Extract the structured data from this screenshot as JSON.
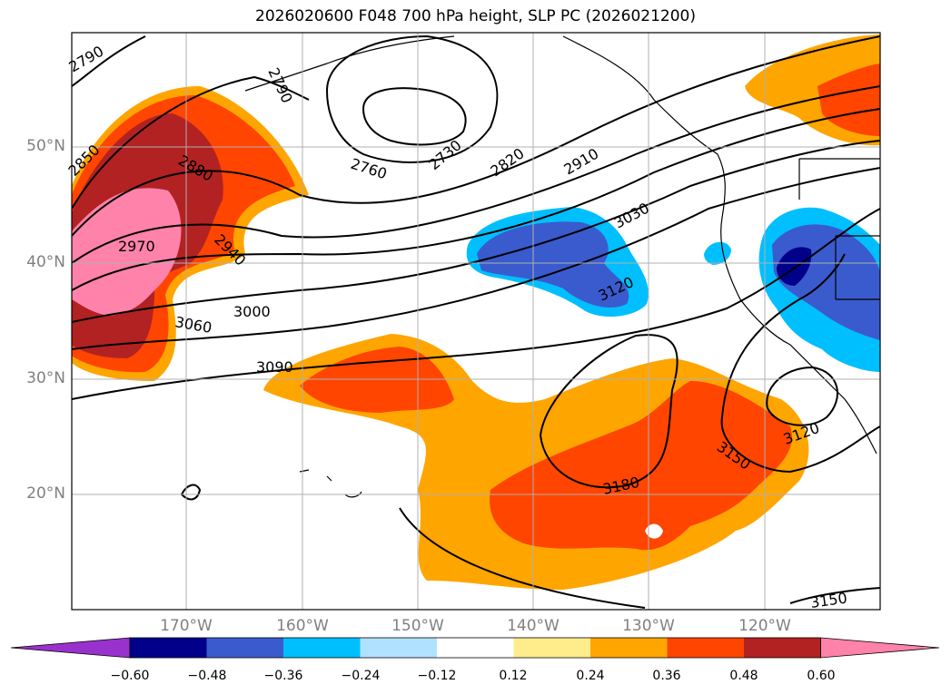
{
  "title": "2026020600 F048 700 hPa height, SLP PC (2026021200)",
  "lat_labels": [
    "50°N",
    "40°N",
    "30°N",
    "20°N"
  ],
  "lon_labels": [
    "170°W",
    "160°W",
    "150°W",
    "140°W",
    "130°W",
    "120°W"
  ],
  "contour_labels": [
    "2790",
    "2850",
    "2880",
    "2940",
    "2970",
    "2790",
    "2760",
    "2730",
    "2820",
    "2910",
    "3030",
    "3000",
    "3060",
    "3090",
    "3120",
    "3180",
    "3150",
    "3120",
    "3150"
  ],
  "colorbar": {
    "ticks": [
      "−0.60",
      "−0.48",
      "−0.36",
      "−0.24",
      "−0.12",
      "0.12",
      "0.24",
      "0.36",
      "0.48",
      "0.60"
    ],
    "colors": [
      "#9932cc",
      "#00008b",
      "#3a5bcd",
      "#00bfff",
      "#b0e2ff",
      "#ffffff",
      "#ffec8b",
      "#ffa500",
      "#ff4500",
      "#b22222",
      "#ff82ab"
    ]
  }
}
